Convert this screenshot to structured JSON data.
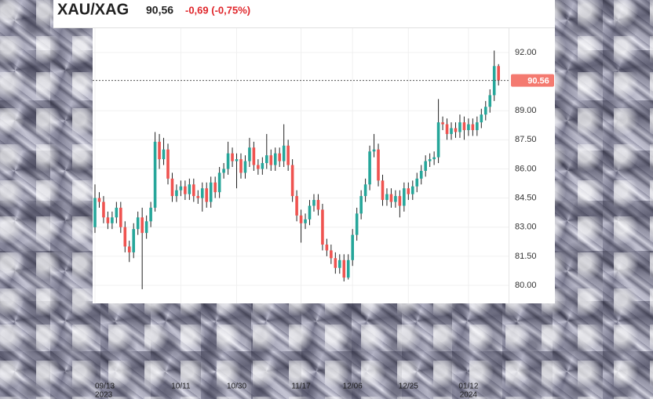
{
  "header": {
    "symbol": "XAU/XAG",
    "price": "90,56",
    "change": "-0,69 (-0,75%)"
  },
  "chart_data": {
    "type": "candlestick",
    "ylim": [
      79.07,
      93.17
    ],
    "yticks": [
      {
        "value": 92,
        "label": "92.00"
      },
      {
        "value": 89,
        "label": "89.00"
      },
      {
        "value": 87.5,
        "label": "87.50"
      },
      {
        "value": 86,
        "label": "86.00"
      },
      {
        "value": 84.5,
        "label": "84.50"
      },
      {
        "value": 83,
        "label": "83.00"
      },
      {
        "value": 81.5,
        "label": "81.50"
      },
      {
        "value": 80,
        "label": "80.00"
      }
    ],
    "xticks": [
      {
        "value": 0,
        "label": "09/13",
        "sublabel": "2023"
      },
      {
        "value": 20,
        "label": "10/11"
      },
      {
        "value": 33,
        "label": "10/30"
      },
      {
        "value": 48,
        "label": "11/17"
      },
      {
        "value": 60,
        "label": "12/06"
      },
      {
        "value": 73,
        "label": "12/25"
      },
      {
        "value": 87,
        "label": "01/12",
        "sublabel": "2024"
      }
    ],
    "up_color": "#26a69a",
    "down_color": "#ef5350",
    "grid": true,
    "last_price": {
      "value": 90.56,
      "label": "90.56"
    },
    "open": [
      83.0,
      84.5,
      84.3,
      83.5,
      83.2,
      83.5,
      84.0,
      83.0,
      82.0,
      81.7,
      82.9,
      83.5,
      82.7,
      83.3,
      84.0,
      87.4,
      86.5,
      87.0,
      85.5,
      84.6,
      84.9,
      85.1,
      84.7,
      85.2,
      84.6,
      84.5,
      85.0,
      84.3,
      85.3,
      84.8,
      85.8,
      86.0,
      86.8,
      86.4,
      86.5,
      85.8,
      86.4,
      87.1,
      86.2,
      86.0,
      86.3,
      86.7,
      86.2,
      86.8,
      86.4,
      87.2,
      86.2,
      84.6,
      83.6,
      83.2,
      83.4,
      84.1,
      84.4,
      83.9,
      82.1,
      81.8,
      81.4,
      80.9,
      81.3,
      80.4,
      81.3,
      82.6,
      83.7,
      84.6,
      85.2,
      86.9,
      87.0,
      85.4,
      84.4,
      84.7,
      84.3,
      84.6,
      84.1,
      85.0,
      84.7,
      85.1,
      85.5,
      85.9,
      86.4,
      86.5,
      86.6,
      88.4,
      88.3,
      87.8,
      88.1,
      87.9,
      88.4,
      88.0,
      88.3,
      88.0,
      88.4,
      88.8,
      89.2,
      89.8,
      91.3
    ],
    "high": [
      85.2,
      84.8,
      84.6,
      83.8,
      83.8,
      84.3,
      84.3,
      83.3,
      82.3,
      83.2,
      83.8,
      84.0,
      83.6,
      84.3,
      87.9,
      87.8,
      87.6,
      87.3,
      85.8,
      85.2,
      85.4,
      85.4,
      85.5,
      85.5,
      84.9,
      85.3,
      85.3,
      85.6,
      85.6,
      86.1,
      86.3,
      87.4,
      87.1,
      86.8,
      86.8,
      86.7,
      87.6,
      87.4,
      86.5,
      86.6,
      87.8,
      87.0,
      87.1,
      87.1,
      88.3,
      87.5,
      86.5,
      84.9,
      83.9,
      83.7,
      84.4,
      84.7,
      84.7,
      84.2,
      82.4,
      82.1,
      81.7,
      81.6,
      81.6,
      81.6,
      82.9,
      84.0,
      84.9,
      85.5,
      87.2,
      87.8,
      87.3,
      85.7,
      85.0,
      85.0,
      84.9,
      84.9,
      85.3,
      85.3,
      85.4,
      85.8,
      86.2,
      86.7,
      86.8,
      86.9,
      89.6,
      88.7,
      88.6,
      88.4,
      88.4,
      88.8,
      88.7,
      88.6,
      88.6,
      88.7,
      89.1,
      89.5,
      90.1,
      92.1,
      91.4
    ],
    "low": [
      82.7,
      84.0,
      83.2,
      82.9,
      82.9,
      83.2,
      82.7,
      81.7,
      81.2,
      81.4,
      82.6,
      79.8,
      82.4,
      83.0,
      83.8,
      86.0,
      86.2,
      85.2,
      84.3,
      84.3,
      84.6,
      84.4,
      84.4,
      84.3,
      84.2,
      83.8,
      84.0,
      84.0,
      84.5,
      84.5,
      85.5,
      85.7,
      86.1,
      85.0,
      85.5,
      85.5,
      86.1,
      85.9,
      85.7,
      85.7,
      86.0,
      85.9,
      85.9,
      86.1,
      86.1,
      85.9,
      84.3,
      83.3,
      82.2,
      82.9,
      83.1,
      83.8,
      83.6,
      81.8,
      81.5,
      81.1,
      80.6,
      80.6,
      80.2,
      80.3,
      81.0,
      82.3,
      83.4,
      84.3,
      84.9,
      86.6,
      85.1,
      84.1,
      84.1,
      84.0,
      84.0,
      83.5,
      83.8,
      84.4,
      84.4,
      84.8,
      85.2,
      85.6,
      86.1,
      86.2,
      86.3,
      88.0,
      87.5,
      87.5,
      87.6,
      87.6,
      87.5,
      87.7,
      87.7,
      87.7,
      88.1,
      88.5,
      88.9,
      89.5,
      90.3
    ],
    "close": [
      84.5,
      84.3,
      83.5,
      83.2,
      83.5,
      84.0,
      83.0,
      82.0,
      81.7,
      82.9,
      83.5,
      82.7,
      83.3,
      84.0,
      87.4,
      86.5,
      87.0,
      85.5,
      84.6,
      84.9,
      85.1,
      84.7,
      85.2,
      84.6,
      84.5,
      85.0,
      84.3,
      85.3,
      84.8,
      85.8,
      86.0,
      86.8,
      86.4,
      86.5,
      85.8,
      86.4,
      87.1,
      86.2,
      86.0,
      86.3,
      86.7,
      86.2,
      86.8,
      86.4,
      87.2,
      86.2,
      84.6,
      83.6,
      83.2,
      83.4,
      84.1,
      84.4,
      83.9,
      82.1,
      81.8,
      81.4,
      80.9,
      81.3,
      80.4,
      81.3,
      82.6,
      83.7,
      84.6,
      85.2,
      86.9,
      87.0,
      85.4,
      84.4,
      84.7,
      84.3,
      84.6,
      84.1,
      85.0,
      84.7,
      85.1,
      85.5,
      85.9,
      86.4,
      86.5,
      86.6,
      88.4,
      88.3,
      87.8,
      88.1,
      87.9,
      88.4,
      88.0,
      88.3,
      88.0,
      88.4,
      88.8,
      89.2,
      89.8,
      91.3,
      90.56
    ]
  }
}
